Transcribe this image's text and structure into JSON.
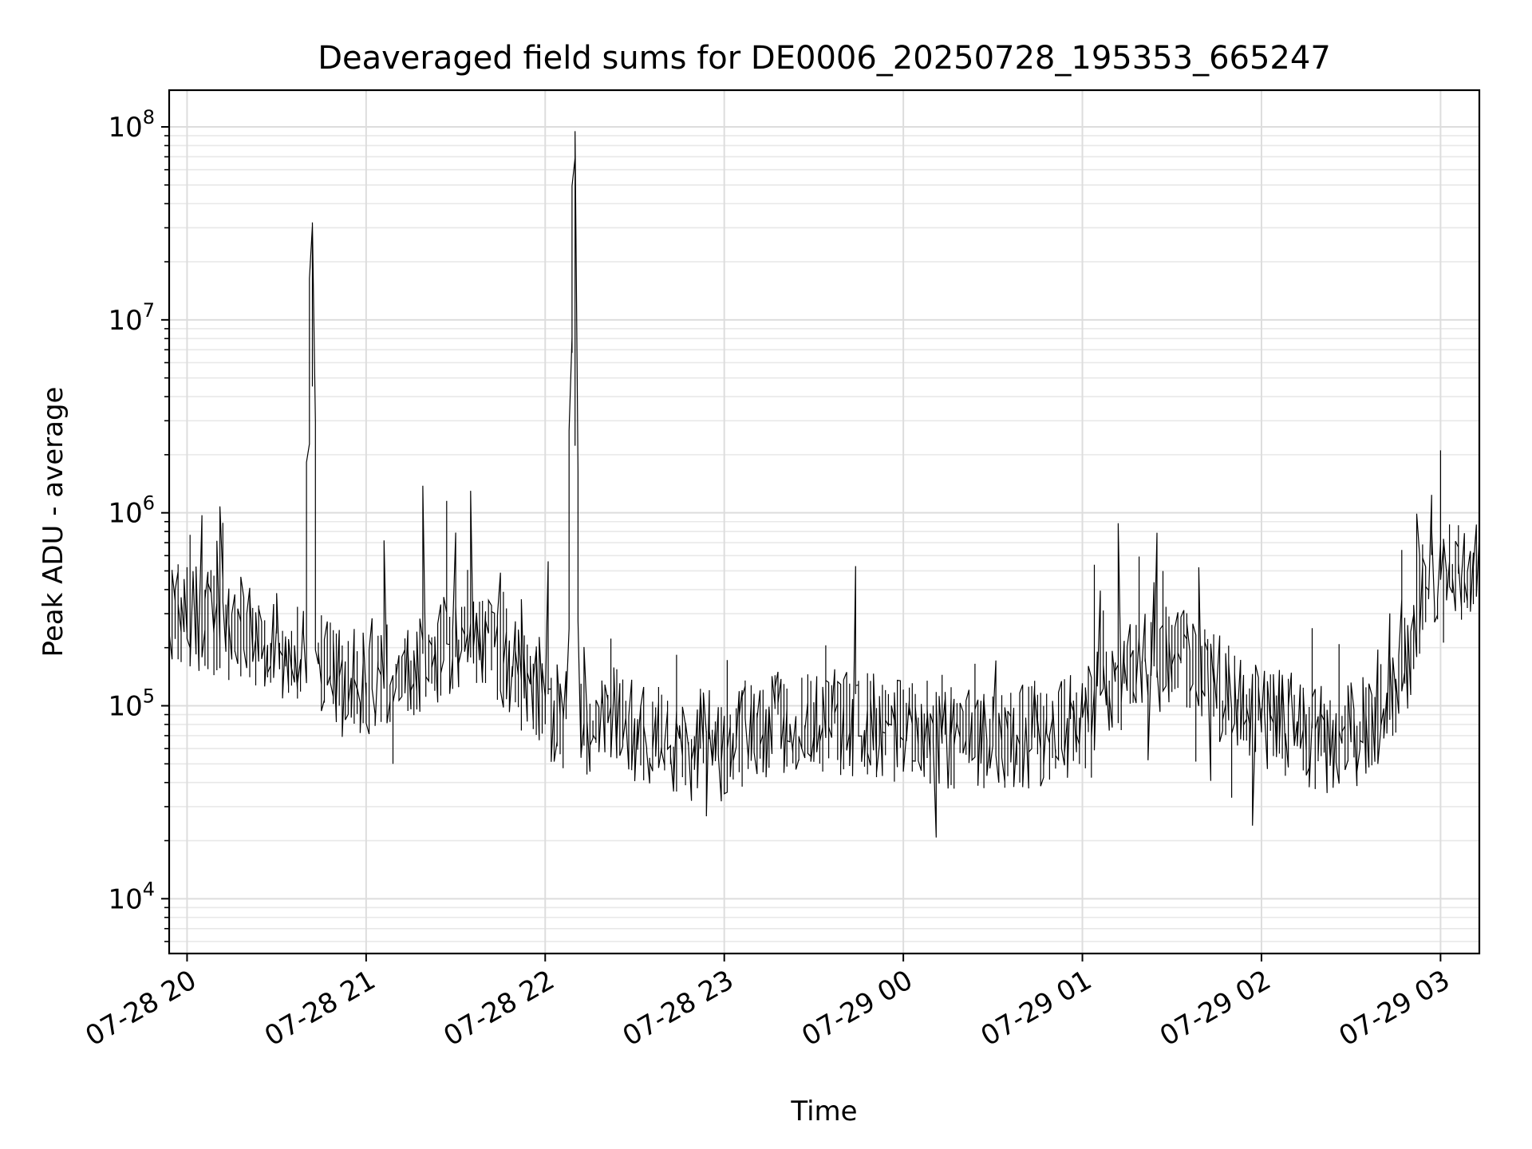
{
  "chart_data": {
    "type": "line",
    "title": "Deaveraged field sums for DE0006_20250728_195353_665247",
    "xlabel": "Time",
    "ylabel": "Peak ADU - average",
    "yscale": "log",
    "ylim": [
      5200,
      155000000
    ],
    "xlim": [
      "2025-07-28 19:54",
      "2025-07-29 03:13"
    ],
    "grid": true,
    "line_color": "#000000",
    "x_ticks": [
      {
        "value": "2025-07-28 20:00",
        "label": "07-28 20"
      },
      {
        "value": "2025-07-28 21:00",
        "label": "07-28 21"
      },
      {
        "value": "2025-07-28 22:00",
        "label": "07-28 22"
      },
      {
        "value": "2025-07-28 23:00",
        "label": "07-28 23"
      },
      {
        "value": "2025-07-29 00:00",
        "label": "07-29 00"
      },
      {
        "value": "2025-07-29 01:00",
        "label": "07-29 01"
      },
      {
        "value": "2025-07-29 02:00",
        "label": "07-29 02"
      },
      {
        "value": "2025-07-29 03:00",
        "label": "07-29 03"
      }
    ],
    "y_ticks": [
      {
        "value": 10000,
        "base": "10",
        "exp": "4"
      },
      {
        "value": 100000,
        "base": "10",
        "exp": "5"
      },
      {
        "value": 1000000,
        "base": "10",
        "exp": "6"
      },
      {
        "value": 10000000,
        "base": "10",
        "exp": "7"
      },
      {
        "value": 100000000,
        "base": "10",
        "exp": "8"
      }
    ],
    "series": [
      {
        "x": [
          "2025-07-28 19:54",
          "2025-07-28 20:05",
          "2025-07-28 20:15",
          "2025-07-28 20:25",
          "2025-07-28 20:35",
          "2025-07-28 20:40",
          "2025-07-28 20:42",
          "2025-07-28 20:44",
          "2025-07-28 20:50",
          "2025-07-28 21:00",
          "2025-07-28 21:10",
          "2025-07-28 21:20",
          "2025-07-28 21:30",
          "2025-07-28 21:40",
          "2025-07-28 21:50",
          "2025-07-28 21:58",
          "2025-07-28 22:08",
          "2025-07-28 22:10",
          "2025-07-28 22:12",
          "2025-07-28 22:20",
          "2025-07-28 22:30",
          "2025-07-28 22:40",
          "2025-07-28 22:45",
          "2025-07-28 22:50",
          "2025-07-28 23:00",
          "2025-07-28 23:05",
          "2025-07-28 23:15",
          "2025-07-28 23:30",
          "2025-07-28 23:45",
          "2025-07-29 00:00",
          "2025-07-29 00:15",
          "2025-07-29 00:30",
          "2025-07-29 00:45",
          "2025-07-29 01:00",
          "2025-07-29 01:10",
          "2025-07-29 01:20",
          "2025-07-29 01:30",
          "2025-07-29 01:40",
          "2025-07-29 01:50",
          "2025-07-29 02:00",
          "2025-07-29 02:10",
          "2025-07-29 02:15",
          "2025-07-29 02:25",
          "2025-07-29 02:35",
          "2025-07-29 02:45",
          "2025-07-29 02:50",
          "2025-07-29 02:55",
          "2025-07-29 03:00",
          "2025-07-29 03:05",
          "2025-07-29 03:13"
        ],
        "values": [
          290000,
          280000,
          250000,
          220000,
          200000,
          180000,
          32000000,
          170000,
          140000,
          130000,
          150000,
          180000,
          210000,
          230000,
          150000,
          110000,
          80000,
          95000000,
          75000,
          90000,
          75000,
          70000,
          60000,
          65000,
          65000,
          70000,
          80000,
          85000,
          80000,
          75000,
          70000,
          65000,
          70000,
          80000,
          130000,
          160000,
          180000,
          150000,
          110000,
          90000,
          80000,
          70000,
          65000,
          75000,
          100000,
          180000,
          450000,
          500000,
          480000,
          470000
        ]
      }
    ]
  }
}
